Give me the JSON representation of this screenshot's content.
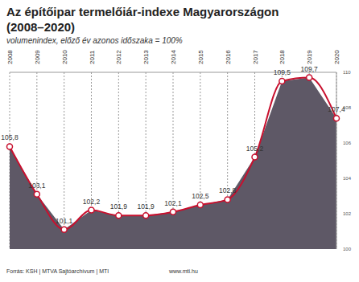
{
  "chart_data": {
    "type": "area",
    "title": "Az építőipar termelőiár-indexe Magyarországon (2008–2020)",
    "subtitle": "volumenindex, előző év azonos időszaka = 100%",
    "source": "Forrás: KSH | MTVA Sajtóarchívum | MTI",
    "website": "www.mti.hu",
    "categories": [
      "2008",
      "2009",
      "2010",
      "2011",
      "2012",
      "2013",
      "2014",
      "2015",
      "2016",
      "2017",
      "2018",
      "2019",
      "2020"
    ],
    "values": [
      105.8,
      103.1,
      101.1,
      102.2,
      101.9,
      101.9,
      102.1,
      102.5,
      102.8,
      105.2,
      109.5,
      109.7,
      107.4
    ],
    "value_labels": [
      "105,8",
      "103,1",
      "101,1",
      "102,2",
      "101,9",
      "101,9",
      "102,1",
      "102,5",
      "102,8",
      "105,2",
      "109,5",
      "109,7",
      "107,4"
    ],
    "color": "#c8102e",
    "ylim": [
      100,
      110
    ],
    "yticks": [
      100,
      102,
      104,
      106,
      108,
      110
    ],
    "grid": true,
    "data_labels": true,
    "marker": "circle"
  }
}
